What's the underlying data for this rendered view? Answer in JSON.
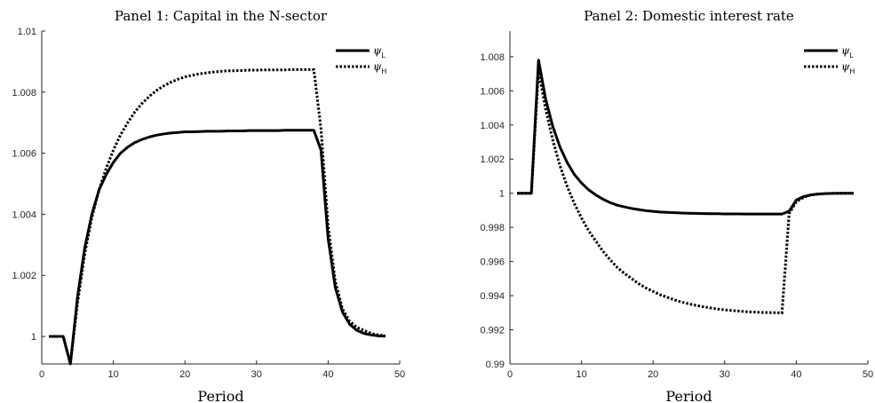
{
  "chart_data": [
    {
      "type": "line",
      "title": "Panel 1: Capital in the N-sector",
      "xlabel": "Period",
      "ylabel": "",
      "xlim": [
        0,
        50
      ],
      "ylim": [
        0.9991,
        1.01
      ],
      "xticks": [
        0,
        10,
        20,
        30,
        40,
        50
      ],
      "xtick_labels": [
        "0",
        "10",
        "20",
        "30",
        "40",
        "50"
      ],
      "yticks": [
        1,
        1.002,
        1.004,
        1.006,
        1.008,
        1.01
      ],
      "ytick_labels": [
        "1",
        "1.002",
        "1.004",
        "1.006",
        "1.008",
        "1.01"
      ],
      "grid": false,
      "legend_position": "top-right",
      "series": [
        {
          "name": "ψ",
          "subscript": "L",
          "style": "solid",
          "x": [
            1,
            2,
            3,
            4,
            5,
            6,
            7,
            8,
            9,
            10,
            11,
            12,
            13,
            14,
            15,
            16,
            17,
            18,
            19,
            20,
            21,
            22,
            23,
            24,
            25,
            26,
            27,
            28,
            29,
            30,
            31,
            32,
            33,
            34,
            35,
            36,
            37,
            38,
            39,
            40,
            41,
            42,
            43,
            44,
            45,
            46,
            47,
            48
          ],
          "y": [
            1,
            1,
            1,
            0.9991,
            1.0013,
            1.0029,
            1.004,
            1.0048,
            1.0053,
            1.0057,
            1.006,
            1.0062,
            1.00635,
            1.00645,
            1.00653,
            1.00659,
            1.00663,
            1.00666,
            1.00668,
            1.0067,
            1.0067,
            1.00671,
            1.00672,
            1.00672,
            1.00672,
            1.00673,
            1.00673,
            1.00673,
            1.00674,
            1.00674,
            1.00674,
            1.00674,
            1.00674,
            1.00675,
            1.00675,
            1.00675,
            1.00675,
            1.00675,
            1.0061,
            1.0032,
            1.0016,
            1.0008,
            1.0004,
            1.0002,
            1.0001,
            1.00005,
            1.00002,
            1.00001
          ]
        },
        {
          "name": "ψ",
          "subscript": "H",
          "style": "dotted",
          "x": [
            1,
            2,
            3,
            4,
            5,
            6,
            7,
            8,
            9,
            10,
            11,
            12,
            13,
            14,
            15,
            16,
            17,
            18,
            19,
            20,
            21,
            22,
            23,
            24,
            25,
            26,
            27,
            28,
            29,
            30,
            31,
            32,
            33,
            34,
            35,
            36,
            37,
            38,
            39,
            40,
            41,
            42,
            43,
            44,
            45,
            46,
            47,
            48
          ],
          "y": [
            1,
            1,
            1,
            0.9991,
            1.0011,
            1.0027,
            1.0039,
            1.0048,
            1.0055,
            1.0061,
            1.0066,
            1.007,
            1.00735,
            1.00763,
            1.00786,
            1.00805,
            1.0082,
            1.00832,
            1.00842,
            1.0085,
            1.00855,
            1.0086,
            1.00863,
            1.00866,
            1.00868,
            1.0087,
            1.0087,
            1.00871,
            1.00872,
            1.00872,
            1.00873,
            1.00873,
            1.00873,
            1.00873,
            1.00874,
            1.00874,
            1.00874,
            1.00874,
            1.0068,
            1.0036,
            1.0018,
            1.0009,
            1.0005,
            1.0003,
            1.0002,
            1.0001,
            1.00005,
            1.00002
          ]
        }
      ]
    },
    {
      "type": "line",
      "title": "Panel 2: Domestic interest rate",
      "xlabel": "Period",
      "ylabel": "",
      "xlim": [
        0,
        50
      ],
      "ylim": [
        0.99,
        1.0095
      ],
      "xticks": [
        0,
        10,
        20,
        30,
        40,
        50
      ],
      "xtick_labels": [
        "0",
        "10",
        "20",
        "30",
        "40",
        "50"
      ],
      "yticks": [
        0.99,
        0.992,
        0.994,
        0.996,
        0.998,
        1,
        1.002,
        1.004,
        1.006,
        1.008
      ],
      "ytick_labels": [
        "0.99",
        "0.992",
        "0.994",
        "0.996",
        "0.998",
        "1",
        "1.002",
        "1.004",
        "1.006",
        "1.008"
      ],
      "grid": false,
      "legend_position": "top-right",
      "series": [
        {
          "name": "ψ",
          "subscript": "L",
          "style": "solid",
          "x": [
            1,
            2,
            3,
            4,
            5,
            6,
            7,
            8,
            9,
            10,
            11,
            12,
            13,
            14,
            15,
            16,
            17,
            18,
            19,
            20,
            21,
            22,
            23,
            24,
            25,
            26,
            27,
            28,
            29,
            30,
            31,
            32,
            33,
            34,
            35,
            36,
            37,
            38,
            39,
            40,
            41,
            42,
            43,
            44,
            45,
            46,
            47,
            48
          ],
          "y": [
            1,
            1,
            1,
            1.0078,
            1.0055,
            1.0039,
            1.0027,
            1.0018,
            1.0011,
            1.0006,
            1.0002,
            0.9999,
            0.99965,
            0.99945,
            0.9993,
            0.9992,
            0.99911,
            0.99904,
            0.99898,
            0.99894,
            0.9989,
            0.99888,
            0.99886,
            0.99884,
            0.99883,
            0.99882,
            0.99881,
            0.9988,
            0.9988,
            0.99879,
            0.99879,
            0.99879,
            0.99878,
            0.99878,
            0.99878,
            0.99878,
            0.99878,
            0.99878,
            0.99895,
            0.9996,
            0.9998,
            0.9999,
            0.99995,
            0.99998,
            0.99999,
            1,
            1,
            1
          ]
        },
        {
          "name": "ψ",
          "subscript": "H",
          "style": "dotted",
          "x": [
            1,
            2,
            3,
            4,
            5,
            6,
            7,
            8,
            9,
            10,
            11,
            12,
            13,
            14,
            15,
            16,
            17,
            18,
            19,
            20,
            21,
            22,
            23,
            24,
            25,
            26,
            27,
            28,
            29,
            30,
            31,
            32,
            33,
            34,
            35,
            36,
            37,
            38,
            39,
            40,
            41,
            42,
            43,
            44,
            45,
            46,
            47,
            48
          ],
          "y": [
            1,
            1,
            1,
            1.0072,
            1.0049,
            1.0031,
            1.0016,
            1.0004,
            0.9994,
            0.99855,
            0.9978,
            0.9972,
            0.9966,
            0.9961,
            0.99565,
            0.9953,
            0.995,
            0.9947,
            0.99445,
            0.99425,
            0.99405,
            0.9939,
            0.99375,
            0.99362,
            0.99352,
            0.99343,
            0.99335,
            0.99328,
            0.99322,
            0.99317,
            0.99313,
            0.9931,
            0.99306,
            0.99304,
            0.99302,
            0.99301,
            0.993,
            0.99299,
            0.9988,
            0.9995,
            0.99975,
            0.9999,
            0.99995,
            0.99998,
            0.99999,
            1,
            1,
            1
          ]
        }
      ]
    }
  ]
}
